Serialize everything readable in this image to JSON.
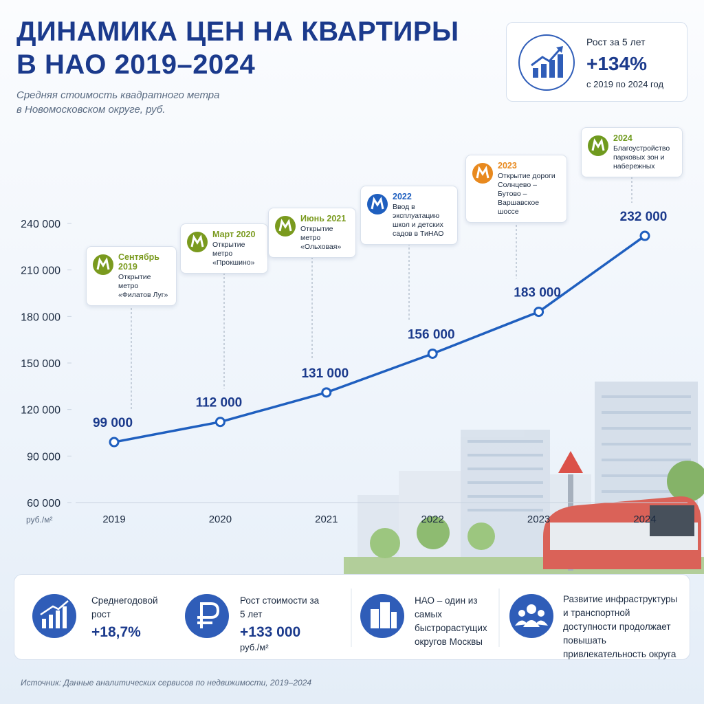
{
  "header": {
    "title_lines": [
      "ДИНАМИКА ЦЕН НА КВАРТИРЫ",
      "В НАО 2019–2024"
    ],
    "subtitle_lines": [
      "Средняя стоимость квадратного метра",
      "в Новомосковском округе, руб."
    ]
  },
  "badge": {
    "label": "Рост за 5 лет",
    "value": "+134%",
    "note": "с 2019 по 2024 год"
  },
  "chart_data": {
    "type": "line",
    "categories": [
      "2019",
      "2020",
      "2021",
      "2022",
      "2023",
      "2024"
    ],
    "values": [
      99000,
      112000,
      131000,
      156000,
      183000,
      232000
    ],
    "value_labels": [
      "99 000",
      "112 000",
      "131 000",
      "156 000",
      "183 000",
      "232 000"
    ],
    "color": "#1f5fbf",
    "ylim": [
      60000,
      240000
    ],
    "yticks": [
      {
        "value": 60000,
        "label": "60 000"
      },
      {
        "value": 90000,
        "label": "90 000"
      },
      {
        "value": 120000,
        "label": "120 000"
      },
      {
        "value": 150000,
        "label": "150 000"
      },
      {
        "value": 180000,
        "label": "180 000"
      },
      {
        "value": 210000,
        "label": "210 000"
      },
      {
        "value": 240000,
        "label": "240 000"
      }
    ],
    "y_label": "руб./м²",
    "annotations": [
      {
        "date": "Сентябрь 2019",
        "text": "Открытие метро «Филатов Луг»",
        "color": "#7a9a1e"
      },
      {
        "date": "Март 2020",
        "text": "Открытие метро «Прокшино»",
        "color": "#7a9a1e"
      },
      {
        "date": "Июнь 2021",
        "text": "Открытие метро «Ольховая»",
        "color": "#7a9a1e"
      },
      {
        "date": "2022",
        "text": "Ввод в эксплуатацию школ и детских садов в ТиНАО",
        "color": "#1f5fbf"
      },
      {
        "date": "2023",
        "text": "Открытие дороги Солнцево – Бутово – Варшавское шоссе",
        "color": "#e8891e"
      },
      {
        "date": "2024",
        "text": "Благоустройство парковых зон и набережных",
        "color": "#6f9a1e"
      }
    ]
  },
  "stats": [
    {
      "text": "Среднегодовой рост",
      "value": "+18,7%"
    },
    {
      "text": "Рост стоимости за 5 лет",
      "value": "+133 000",
      "unit": "руб./м²"
    },
    {
      "text": "НАО – один из самых быстрорастущих округов Москвы"
    },
    {
      "text": "Развитие инфраструктуры и транспортной доступности продолжает повышать привлекательность округа"
    }
  ],
  "source": "Источник: Данные аналитических сервисов по недвижимости, 2019–2024"
}
